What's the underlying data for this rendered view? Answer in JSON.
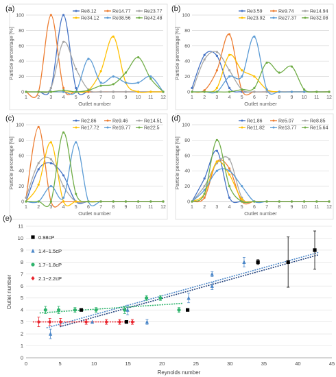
{
  "figure": {
    "panels": [
      {
        "label": "(a)",
        "xlabel": "Outlet number",
        "ylabel": "Particle percentage [%]",
        "legend_columns": 3,
        "series": [
          {
            "name": "Re8.12",
            "color": "#4472c4",
            "values": [
              0,
              0,
              5,
              100,
              5,
              0,
              0,
              0,
              0,
              0,
              0,
              0
            ]
          },
          {
            "name": "Re14.77",
            "color": "#ed7d31",
            "values": [
              0,
              0,
              100,
              5,
              0,
              0,
              0,
              0,
              0,
              0,
              0,
              0
            ]
          },
          {
            "name": "Re23.77",
            "color": "#a5a5a5",
            "values": [
              0,
              0,
              5,
              65,
              30,
              3,
              0,
              0,
              0,
              0,
              0,
              0
            ]
          },
          {
            "name": "Re34.12",
            "color": "#ffc000",
            "values": [
              0,
              0,
              0,
              0,
              0,
              2,
              27,
              72,
              12,
              0,
              0,
              0
            ]
          },
          {
            "name": "Re38.56",
            "color": "#5b9bd5",
            "values": [
              0,
              0,
              0,
              0,
              0,
              43,
              12,
              20,
              12,
              12,
              20,
              0
            ]
          },
          {
            "name": "Re42.48",
            "color": "#70ad47",
            "values": [
              0,
              0,
              0,
              2,
              0,
              2,
              8,
              10,
              25,
              45,
              17,
              0
            ]
          }
        ]
      },
      {
        "label": "(b)",
        "xlabel": "Outlet number",
        "ylabel": "Particle percentage [%]",
        "legend_columns": 3,
        "series": [
          {
            "name": "Re3.59",
            "color": "#4472c4",
            "values": [
              5,
              48,
              47,
              5,
              0,
              0,
              0,
              0,
              0,
              0,
              0,
              0
            ]
          },
          {
            "name": "Re9.74",
            "color": "#ed7d31",
            "values": [
              0,
              2,
              28,
              75,
              2,
              0,
              0,
              0,
              0,
              0,
              0,
              0
            ]
          },
          {
            "name": "Re14.94",
            "color": "#a5a5a5",
            "values": [
              0,
              42,
              52,
              28,
              3,
              0,
              0,
              0,
              0,
              0,
              0,
              0
            ]
          },
          {
            "name": "Re23.92",
            "color": "#ffc000",
            "values": [
              0,
              0,
              5,
              48,
              28,
              20,
              3,
              0,
              0,
              0,
              0,
              0
            ]
          },
          {
            "name": "Re27.37",
            "color": "#5b9bd5",
            "values": [
              0,
              0,
              0,
              20,
              20,
              72,
              3,
              0,
              0,
              0,
              0,
              0
            ]
          },
          {
            "name": "Re32.08",
            "color": "#70ad47",
            "values": [
              0,
              0,
              0,
              0,
              3,
              5,
              38,
              25,
              33,
              3,
              0,
              0
            ]
          }
        ]
      },
      {
        "label": "(c)",
        "xlabel": "Outlet number",
        "ylabel": "Particle percentage [%]",
        "legend_columns": 3,
        "series": [
          {
            "name": "Re2.86",
            "color": "#4472c4",
            "values": [
              0,
              42,
              50,
              34,
              0,
              0,
              0,
              0,
              0,
              0,
              0,
              0
            ]
          },
          {
            "name": "Re9.46",
            "color": "#ed7d31",
            "values": [
              5,
              97,
              0,
              0,
              0,
              0,
              0,
              0,
              0,
              0,
              0,
              0
            ]
          },
          {
            "name": "Re14.51",
            "color": "#a5a5a5",
            "values": [
              5,
              50,
              55,
              20,
              0,
              0,
              0,
              0,
              0,
              0,
              0,
              0
            ]
          },
          {
            "name": "Re17.72",
            "color": "#ffc000",
            "values": [
              0,
              22,
              77,
              0,
              0,
              0,
              0,
              0,
              0,
              0,
              0,
              0
            ]
          },
          {
            "name": "Re19.77",
            "color": "#5b9bd5",
            "values": [
              0,
              0,
              20,
              5,
              77,
              0,
              0,
              0,
              0,
              0,
              0,
              0
            ]
          },
          {
            "name": "Re22.5",
            "color": "#70ad47",
            "values": [
              0,
              0,
              0,
              90,
              10,
              0,
              0,
              0,
              0,
              0,
              0,
              0
            ]
          }
        ]
      },
      {
        "label": "(d)",
        "xlabel": "Outlet number",
        "ylabel": "Particle percentage [%]",
        "legend_columns": 3,
        "series": [
          {
            "name": "Re1.86",
            "color": "#4472c4",
            "values": [
              0,
              30,
              66,
              5,
              0,
              0,
              0,
              0,
              0,
              0,
              0,
              0
            ]
          },
          {
            "name": "Re5.07",
            "color": "#ed7d31",
            "values": [
              0,
              5,
              52,
              43,
              0,
              0,
              0,
              0,
              0,
              0,
              0,
              0
            ]
          },
          {
            "name": "Re8.85",
            "color": "#a5a5a5",
            "values": [
              0,
              20,
              50,
              55,
              5,
              0,
              0,
              0,
              0,
              0,
              0,
              0
            ]
          },
          {
            "name": "Re11.82",
            "color": "#ffc000",
            "values": [
              0,
              10,
              52,
              35,
              3,
              0,
              0,
              0,
              0,
              0,
              0,
              0
            ]
          },
          {
            "name": "Re13.77",
            "color": "#5b9bd5",
            "values": [
              0,
              15,
              40,
              40,
              20,
              0,
              0,
              0,
              0,
              0,
              0,
              0
            ]
          },
          {
            "name": "Re15.64",
            "color": "#70ad47",
            "values": [
              0,
              10,
              80,
              20,
              0,
              0,
              0,
              0,
              0,
              0,
              0,
              0
            ]
          }
        ]
      }
    ],
    "panel_e": {
      "label": "(e)",
      "xlabel": "Reynolds number",
      "ylabel": "Outlet number"
    }
  },
  "chart_data": [
    {
      "type": "line",
      "panel": "(a)",
      "x": [
        1,
        2,
        3,
        4,
        5,
        6,
        7,
        8,
        9,
        10,
        11,
        12
      ],
      "xlim": [
        1,
        12
      ],
      "ylim": [
        0,
        100
      ],
      "yticks": [
        0,
        20,
        40,
        60,
        80,
        100
      ],
      "xlabel": "Outlet number",
      "ylabel": "Particle percentage [%]",
      "legend": "top, 3 columns"
    },
    {
      "type": "line",
      "panel": "(b)",
      "x": [
        1,
        2,
        3,
        4,
        5,
        6,
        7,
        8,
        9,
        10,
        11,
        12
      ],
      "xlim": [
        1,
        12
      ],
      "ylim": [
        0,
        100
      ],
      "yticks": [
        0,
        20,
        40,
        60,
        80,
        100
      ],
      "xlabel": "Outlet number",
      "ylabel": "Particle percentage [%]",
      "legend": "top, 3 columns"
    },
    {
      "type": "line",
      "panel": "(c)",
      "x": [
        1,
        2,
        3,
        4,
        5,
        6,
        7,
        8,
        9,
        10,
        11,
        12
      ],
      "xlim": [
        1,
        12
      ],
      "ylim": [
        0,
        100
      ],
      "yticks": [
        0,
        20,
        40,
        60,
        80,
        100
      ],
      "xlabel": "Outlet number",
      "ylabel": "Particle percentage [%]",
      "legend": "top, 3 columns"
    },
    {
      "type": "line",
      "panel": "(d)",
      "x": [
        1,
        2,
        3,
        4,
        5,
        6,
        7,
        8,
        9,
        10,
        11,
        12
      ],
      "xlim": [
        1,
        12
      ],
      "ylim": [
        0,
        100
      ],
      "yticks": [
        0,
        20,
        40,
        60,
        80,
        100
      ],
      "xlabel": "Outlet number",
      "ylabel": "Particle percentage [%]",
      "legend": "top, 3 columns"
    },
    {
      "type": "scatter",
      "panel": "(e)",
      "xlabel": "Reynolds number",
      "ylabel": "Outlet number",
      "xlim": [
        0,
        45
      ],
      "ylim": [
        0,
        11
      ],
      "xticks": [
        0,
        5,
        10,
        15,
        20,
        25,
        30,
        35,
        40,
        45
      ],
      "yticks": [
        0,
        1,
        2,
        3,
        4,
        5,
        6,
        7,
        8,
        9,
        10,
        11
      ],
      "legend": "top-left",
      "series": [
        {
          "name": "0.98cP",
          "color": "#000000",
          "marker": "square",
          "points": [
            [
              8.12,
              4,
              0
            ],
            [
              14.77,
              3,
              0
            ],
            [
              23.77,
              4,
              0
            ],
            [
              34.12,
              8,
              0.2
            ],
            [
              38.56,
              8,
              2.1
            ],
            [
              42.48,
              9,
              1.6
            ]
          ]
        },
        {
          "name": "1.4~1.5cP",
          "color": "#4a86c8",
          "marker": "triangle",
          "points": [
            [
              3.59,
              2,
              0.4
            ],
            [
              9.74,
              3,
              0
            ],
            [
              14.94,
              4,
              0.4
            ],
            [
              23.92,
              5,
              0.4
            ],
            [
              27.37,
              6,
              0.3
            ],
            [
              32.08,
              8,
              0.4
            ],
            [
              27.37,
              7,
              0.2
            ],
            [
              17.8,
              3,
              0.2
            ]
          ]
        },
        {
          "name": "1.7~1.8cP",
          "color": "#2db36b",
          "marker": "circle",
          "points": [
            [
              2.86,
              4,
              0.3
            ],
            [
              4.8,
              4,
              0.3
            ],
            [
              7.2,
              4,
              0.2
            ],
            [
              10.3,
              4,
              0.2
            ],
            [
              14.51,
              4,
              0.3
            ],
            [
              17.72,
              5,
              0.2
            ],
            [
              19.77,
              5,
              0.2
            ],
            [
              22.5,
              4,
              0.2
            ]
          ]
        },
        {
          "name": "2.1~2.2cP",
          "color": "#e8212a",
          "marker": "diamond",
          "points": [
            [
              1.86,
              3,
              0.4
            ],
            [
              3.5,
              3,
              0.3
            ],
            [
              5.07,
              3,
              0.3
            ],
            [
              8.85,
              3,
              0.2
            ],
            [
              11.82,
              3,
              0.2
            ],
            [
              13.77,
              3,
              0.2
            ],
            [
              15.64,
              3,
              0.2
            ]
          ]
        }
      ],
      "trendlines": [
        {
          "series": "0.98cP",
          "color": "#1f3f7a",
          "from": [
            5,
            2.6
          ],
          "to": [
            43,
            8.6
          ]
        },
        {
          "series": "1.4~1.5cP",
          "color": "#4a86c8",
          "from": [
            3,
            2.5
          ],
          "to": [
            43,
            8.8
          ]
        },
        {
          "series": "1.7~1.8cP",
          "color": "#2db36b",
          "from": [
            2,
            3.75
          ],
          "to": [
            23,
            4.55
          ]
        },
        {
          "series": "2.1~2.2cP",
          "color": "#e8212a",
          "from": [
            1,
            3.0
          ],
          "to": [
            16,
            3.0
          ]
        }
      ]
    }
  ]
}
